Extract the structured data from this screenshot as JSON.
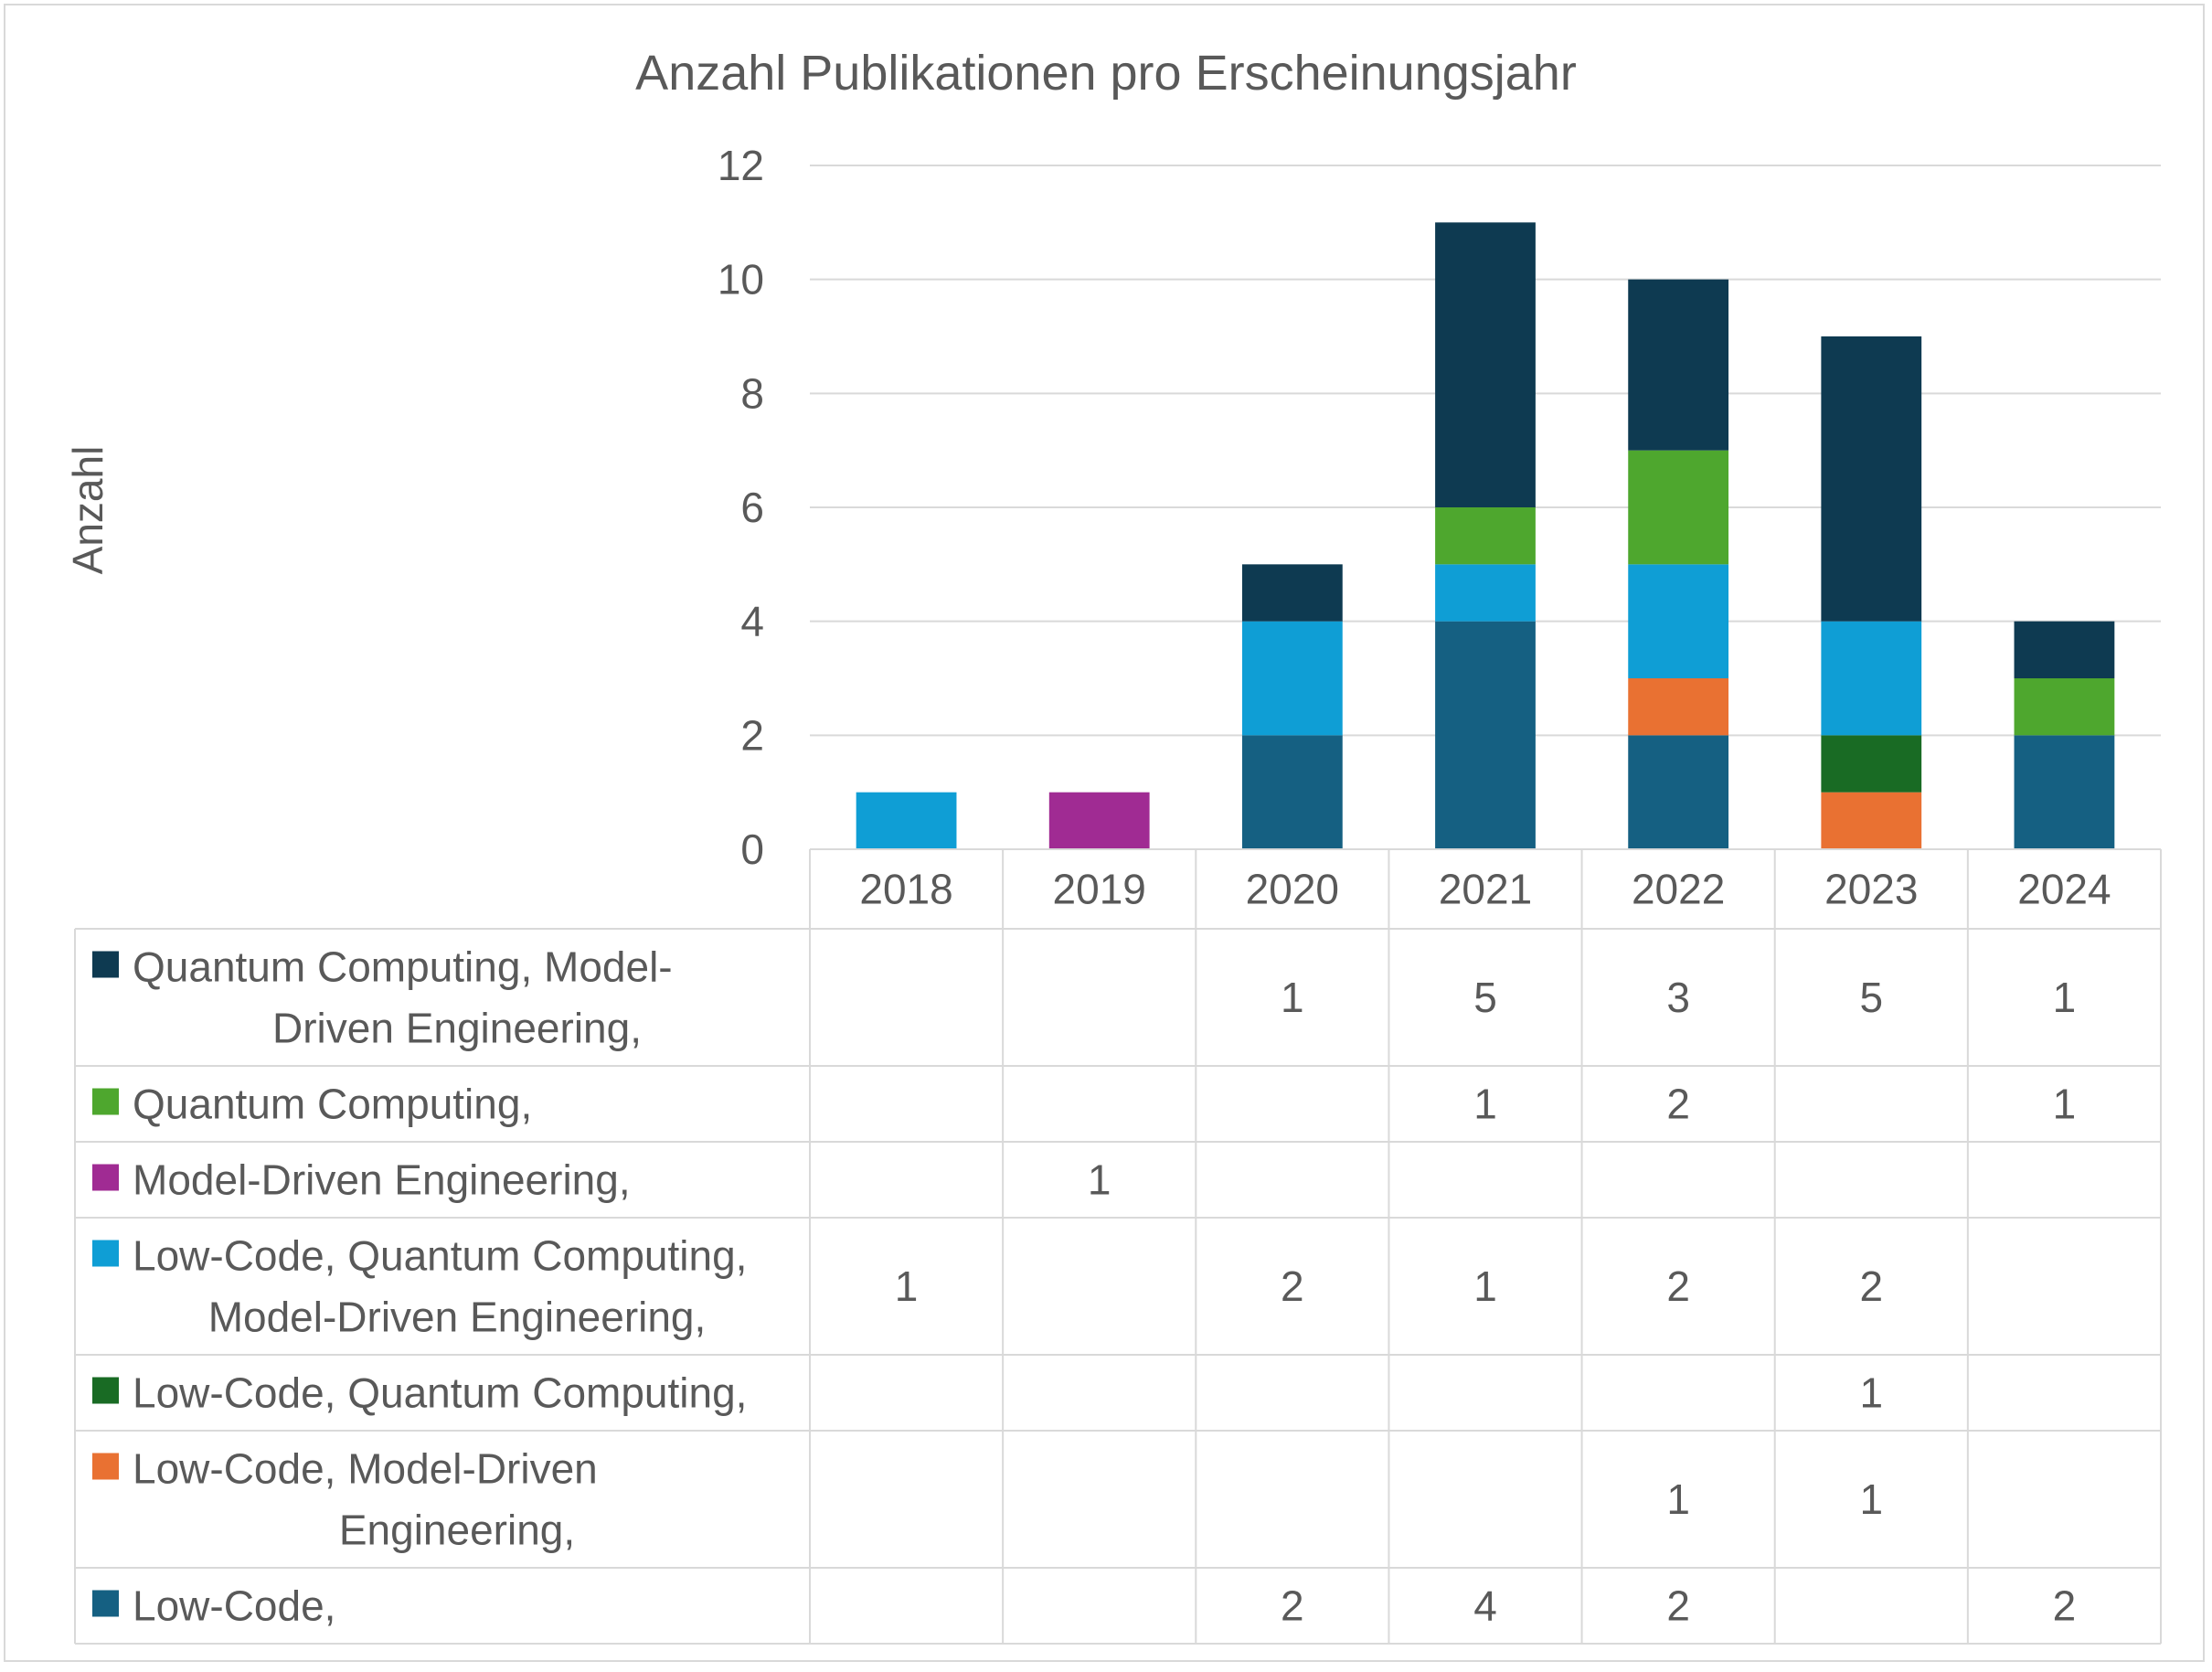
{
  "chart_data": {
    "type": "bar",
    "stacked": true,
    "title": "Anzahl Publikationen pro Erscheinungsjahr",
    "ylabel": "Anzahl",
    "xlabel": "",
    "ylim": [
      0,
      12
    ],
    "yticks": [
      0,
      2,
      4,
      6,
      8,
      10,
      12
    ],
    "grid": true,
    "legend_placement": "data-table",
    "categories": [
      "2018",
      "2019",
      "2020",
      "2021",
      "2022",
      "2023",
      "2024"
    ],
    "series": [
      {
        "name": "Low-Code,",
        "name_lines": [
          "Low-Code,"
        ],
        "color": "#156082",
        "values": [
          null,
          null,
          2,
          4,
          2,
          null,
          2
        ]
      },
      {
        "name": "Low-Code, Model-Driven Engineering,",
        "name_lines": [
          "Low-Code, Model-Driven",
          "Engineering,"
        ],
        "color": "#E97132",
        "values": [
          null,
          null,
          null,
          null,
          1,
          1,
          null
        ]
      },
      {
        "name": "Low-Code, Quantum Computing,",
        "name_lines": [
          "Low-Code, Quantum Computing,"
        ],
        "color": "#196B24",
        "values": [
          null,
          null,
          null,
          null,
          null,
          1,
          null
        ]
      },
      {
        "name": "Low-Code, Quantum Computing, Model-Driven Engineering,",
        "name_lines": [
          "Low-Code, Quantum Computing,",
          "Model-Driven Engineering,"
        ],
        "color": "#0F9ED5",
        "values": [
          1,
          null,
          2,
          1,
          2,
          2,
          null
        ]
      },
      {
        "name": "Model-Driven Engineering,",
        "name_lines": [
          "Model-Driven Engineering,"
        ],
        "color": "#A02B93",
        "values": [
          null,
          1,
          null,
          null,
          null,
          null,
          null
        ]
      },
      {
        "name": "Quantum Computing,",
        "name_lines": [
          "Quantum Computing,"
        ],
        "color": "#4EA72E",
        "values": [
          null,
          null,
          null,
          1,
          2,
          null,
          1
        ]
      },
      {
        "name": "Quantum Computing, Model-Driven Engineering,",
        "name_lines": [
          "Quantum Computing, Model-",
          "Driven Engineering,"
        ],
        "color": "#0E3A51",
        "values": [
          null,
          null,
          1,
          5,
          3,
          5,
          1
        ]
      }
    ]
  }
}
